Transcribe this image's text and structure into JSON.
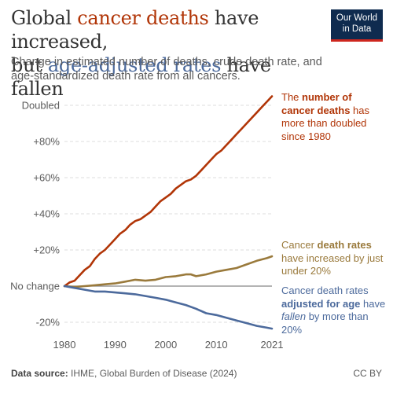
{
  "header": {
    "title_part1": "Global ",
    "title_part2": "cancer deaths",
    "title_part3": " have increased,",
    "title_part4": "but ",
    "title_part5": "age-adjusted rates",
    "title_part6": " have fallen",
    "subtitle": "Change in estimated number of deaths, crude death rate, and age-standardized death rate from all cancers.",
    "logo_line1": "Our World",
    "logo_line2": "in Data"
  },
  "annotations": {
    "red": {
      "t1": "The ",
      "b1": "number of cancer deaths",
      "t2": " has more than doubled since 1980"
    },
    "brown": {
      "t1": "Cancer ",
      "b1": "death rates",
      "t2": " have increased by just under 20%"
    },
    "blue": {
      "t1": "Cancer death rates ",
      "b1": "adjusted for age",
      "t2": " have ",
      "i1": "fallen",
      "t3": " by more than 20%"
    }
  },
  "footer": {
    "source_label": "Data source:",
    "source_text": " IHME, Global Burden of Disease (2024)",
    "license": "CC BY"
  },
  "colors": {
    "red": "#b13507",
    "brown": "#9a7a3c",
    "blue": "#4c6a9c",
    "grid": "#dddddd",
    "baseline": "#888888"
  },
  "chart_data": {
    "type": "line",
    "xlim": [
      1980,
      2021
    ],
    "ylim": [
      -25,
      100
    ],
    "x_ticks": [
      1980,
      1990,
      2000,
      2010,
      2021
    ],
    "y_ticks": [
      {
        "value": 100,
        "label": "Doubled"
      },
      {
        "value": 80,
        "label": "+80%"
      },
      {
        "value": 60,
        "label": "+60%"
      },
      {
        "value": 40,
        "label": "+40%"
      },
      {
        "value": 20,
        "label": "+20%"
      },
      {
        "value": 0,
        "label": "No change"
      },
      {
        "value": -20,
        "label": "-20%"
      }
    ],
    "series": [
      {
        "key": "red",
        "x": [
          1980,
          1981,
          1982,
          1983,
          1984,
          1985,
          1986,
          1987,
          1988,
          1989,
          1990,
          1991,
          1992,
          1993,
          1994,
          1995,
          1996,
          1997,
          1998,
          1999,
          2000,
          2001,
          2002,
          2003,
          2004,
          2005,
          2006,
          2007,
          2008,
          2009,
          2010,
          2011,
          2012,
          2013,
          2014,
          2015,
          2016,
          2017,
          2018,
          2019,
          2020,
          2021
        ],
        "values": [
          0,
          2,
          3,
          6,
          9,
          11,
          15,
          18,
          20,
          23,
          26,
          29,
          31,
          34,
          36,
          37,
          39,
          41,
          44,
          47,
          49,
          51,
          54,
          56,
          58,
          59,
          61,
          64,
          67,
          70,
          73,
          75,
          78,
          81,
          84,
          87,
          90,
          93,
          96,
          99,
          102,
          105
        ]
      },
      {
        "key": "brown",
        "x": [
          1980,
          1982,
          1984,
          1986,
          1988,
          1990,
          1992,
          1994,
          1996,
          1998,
          2000,
          2002,
          2004,
          2005,
          2006,
          2008,
          2010,
          2012,
          2014,
          2016,
          2018,
          2020,
          2021
        ],
        "values": [
          0,
          -0.5,
          0,
          0.5,
          1,
          1.5,
          2.5,
          3.5,
          3,
          3.5,
          5,
          5.5,
          6.5,
          6.5,
          5.5,
          6.5,
          8,
          9,
          10,
          12,
          14,
          15.5,
          16.5
        ]
      },
      {
        "key": "blue",
        "x": [
          1980,
          1982,
          1984,
          1986,
          1988,
          1990,
          1992,
          1994,
          1996,
          1998,
          2000,
          2002,
          2004,
          2006,
          2008,
          2010,
          2012,
          2014,
          2016,
          2018,
          2020,
          2021
        ],
        "values": [
          0,
          -1,
          -2,
          -3,
          -3,
          -3.5,
          -4,
          -4.5,
          -5.5,
          -6.5,
          -7.5,
          -9,
          -10.5,
          -12.5,
          -15,
          -16,
          -17.5,
          -19,
          -20.5,
          -22,
          -23,
          -23.5
        ]
      }
    ]
  }
}
